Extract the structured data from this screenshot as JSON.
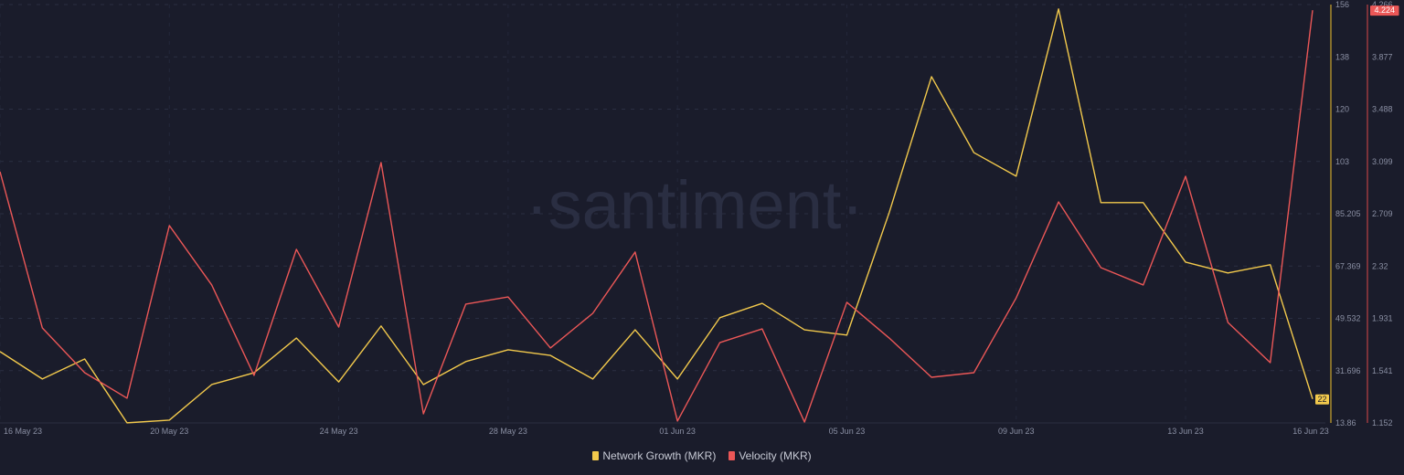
{
  "watermark": "·santiment·",
  "chart_data": {
    "type": "line",
    "x": [
      "16 May 23",
      "17 May 23",
      "18 May 23",
      "19 May 23",
      "20 May 23",
      "21 May 23",
      "22 May 23",
      "23 May 23",
      "24 May 23",
      "25 May 23",
      "26 May 23",
      "27 May 23",
      "28 May 23",
      "29 May 23",
      "30 May 23",
      "31 May 23",
      "01 Jun 23",
      "02 Jun 23",
      "03 Jun 23",
      "04 Jun 23",
      "05 Jun 23",
      "06 Jun 23",
      "07 Jun 23",
      "08 Jun 23",
      "09 Jun 23",
      "10 Jun 23",
      "11 Jun 23",
      "12 Jun 23",
      "13 Jun 23",
      "14 Jun 23",
      "15 Jun 23",
      "16 Jun 23"
    ],
    "x_tick_labels": [
      "16 May 23",
      "20 May 23",
      "24 May 23",
      "28 May 23",
      "01 Jun 23",
      "05 Jun 23",
      "09 Jun 23",
      "13 Jun 23",
      "16 Jun 23"
    ],
    "series": [
      {
        "name": "Network Growth (MKR)",
        "color": "#f2c94c",
        "axis": "left-inner",
        "ylim": [
          13.86,
          156
        ],
        "tick_labels": [
          "156",
          "138",
          "120",
          "103",
          "85.205",
          "67.369",
          "49.532",
          "31.696",
          "13.86"
        ],
        "last_value_label": "22",
        "values": [
          38.1,
          28.8,
          35.6,
          13.9,
          14.8,
          26.9,
          30.9,
          42.7,
          27.8,
          46.8,
          26.9,
          34.7,
          38.7,
          36.8,
          28.8,
          45.5,
          28.8,
          49.6,
          54.5,
          45.5,
          43.7,
          85.3,
          131.5,
          105.7,
          97.7,
          154.5,
          88.7,
          88.7,
          68.5,
          64.8,
          67.6,
          22
        ]
      },
      {
        "name": "Velocity (MKR)",
        "color": "#eb5757",
        "axis": "right",
        "ylim": [
          1.152,
          4.266
        ],
        "tick_labels": [
          "4.266",
          "3.877",
          "3.488",
          "3.099",
          "2.709",
          "2.32",
          "1.931",
          "1.541",
          "1.152"
        ],
        "last_value_label": "4.224",
        "values": [
          3.022,
          1.859,
          1.526,
          1.336,
          2.621,
          2.179,
          1.506,
          2.444,
          1.866,
          3.09,
          1.22,
          2.036,
          2.09,
          1.71,
          1.968,
          2.424,
          1.166,
          1.75,
          1.852,
          1.159,
          2.05,
          1.784,
          1.492,
          1.526,
          2.083,
          2.797,
          2.308,
          2.179,
          2.988,
          1.9,
          1.601,
          4.224
        ]
      }
    ],
    "grid": true,
    "legend": "bottom-center"
  }
}
